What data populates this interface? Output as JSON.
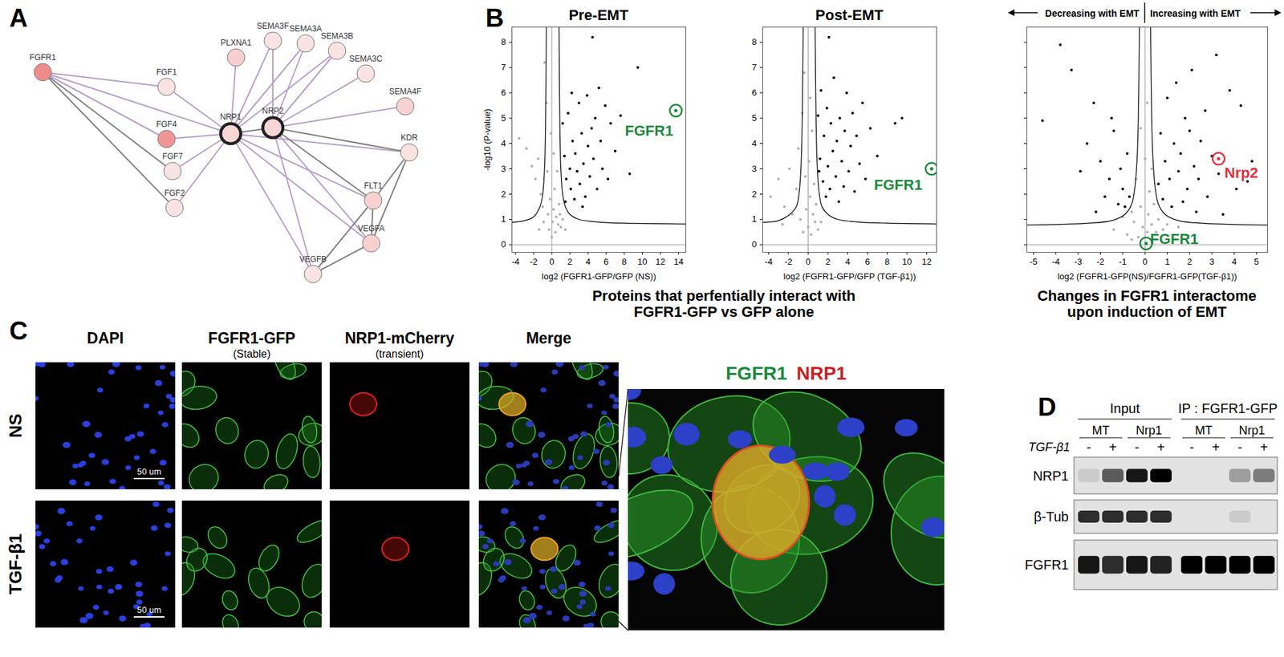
{
  "panel_labels": [
    "A",
    "B",
    "C",
    "D"
  ],
  "network": {
    "nodes": [
      {
        "label": "FGFR1",
        "color": "#ee8c8c",
        "emphasis": false
      },
      {
        "label": "FGF1",
        "color": "#fbe3e3",
        "emphasis": false
      },
      {
        "label": "FGF4",
        "color": "#ee9696",
        "emphasis": false
      },
      {
        "label": "FGF7",
        "color": "#fbe3e3",
        "emphasis": false
      },
      {
        "label": "FGF2",
        "color": "#fbe3e3",
        "emphasis": false
      },
      {
        "label": "NRP1",
        "color": "#f9d6d6",
        "emphasis": true
      },
      {
        "label": "NRP2",
        "color": "#f9d6d6",
        "emphasis": true
      },
      {
        "label": "PLXNA1",
        "color": "#f8cfcf",
        "emphasis": false
      },
      {
        "label": "SEMA3F",
        "color": "#fbe3e3",
        "emphasis": false
      },
      {
        "label": "SEMA3A",
        "color": "#fbe3e3",
        "emphasis": false
      },
      {
        "label": "SEMA3B",
        "color": "#fbe3e3",
        "emphasis": false
      },
      {
        "label": "SEMA3C",
        "color": "#fbe3e3",
        "emphasis": false
      },
      {
        "label": "SEMA4F",
        "color": "#f8d2d2",
        "emphasis": false
      },
      {
        "label": "KDR",
        "color": "#fbe3e3",
        "emphasis": false
      },
      {
        "label": "FLT1",
        "color": "#f8d2d2",
        "emphasis": false
      },
      {
        "label": "VEGFA",
        "color": "#f8d0d0",
        "emphasis": false
      },
      {
        "label": "VEGFB",
        "color": "#fbe3e3",
        "emphasis": false
      }
    ],
    "edges": [
      {
        "source": 0,
        "target": 1,
        "color": "#b79fc8"
      },
      {
        "source": 0,
        "target": 2,
        "color": "#b79fc8"
      },
      {
        "source": 0,
        "target": 3,
        "color": "#808080"
      },
      {
        "source": 0,
        "target": 4,
        "color": "#808080"
      },
      {
        "source": 0,
        "target": 5,
        "color": "#b79fc8"
      },
      {
        "source": 1,
        "target": 5,
        "color": "#b79fc8"
      },
      {
        "source": 2,
        "target": 5,
        "color": "#b79fc8"
      },
      {
        "source": 3,
        "target": 5,
        "color": "#b79fc8"
      },
      {
        "source": 4,
        "target": 5,
        "color": "#b79fc8"
      },
      {
        "source": 5,
        "target": 6,
        "color": "#808080"
      },
      {
        "source": 5,
        "target": 7,
        "color": "#b79fc8"
      },
      {
        "source": 5,
        "target": 8,
        "color": "#b79fc8"
      },
      {
        "source": 5,
        "target": 9,
        "color": "#b79fc8"
      },
      {
        "source": 5,
        "target": 10,
        "color": "#b79fc8"
      },
      {
        "source": 5,
        "target": 13,
        "color": "#b79fc8"
      },
      {
        "source": 5,
        "target": 14,
        "color": "#b79fc8"
      },
      {
        "source": 5,
        "target": 15,
        "color": "#b79fc8"
      },
      {
        "source": 5,
        "target": 16,
        "color": "#b79fc8"
      },
      {
        "source": 6,
        "target": 8,
        "color": "#b79fc8"
      },
      {
        "source": 6,
        "target": 9,
        "color": "#b79fc8"
      },
      {
        "source": 6,
        "target": 10,
        "color": "#b79fc8"
      },
      {
        "source": 6,
        "target": 11,
        "color": "#b79fc8"
      },
      {
        "source": 6,
        "target": 12,
        "color": "#b79fc8"
      },
      {
        "source": 6,
        "target": 15,
        "color": "#b79fc8"
      },
      {
        "source": 6,
        "target": 16,
        "color": "#b79fc8"
      },
      {
        "source": 6,
        "target": 14,
        "color": "#808080"
      },
      {
        "source": 6,
        "target": 13,
        "color": "#808080"
      },
      {
        "source": 13,
        "target": 14,
        "color": "#808080"
      },
      {
        "source": 13,
        "target": 15,
        "color": "#808080"
      },
      {
        "source": 14,
        "target": 15,
        "color": "#808080"
      },
      {
        "source": 14,
        "target": 16,
        "color": "#808080"
      },
      {
        "source": 15,
        "target": 16,
        "color": "#808080"
      }
    ]
  },
  "chart_data": [
    {
      "type": "scatter",
      "title": "Pre-EMT",
      "x_label": "log2 (FGFR1-GFP/GFP (NS))",
      "y_label": "-log10 (P-value)",
      "xlim": [
        -4.4,
        14.8
      ],
      "ylim": [
        -0.3,
        8.6
      ],
      "xticks": [
        -4,
        -2,
        0,
        2,
        4,
        6,
        8,
        10,
        12,
        14
      ],
      "yticks": [
        0,
        1,
        2,
        3,
        4,
        5,
        6,
        7,
        8
      ],
      "reference_lines": {
        "x": [
          0
        ],
        "y": [
          0
        ]
      },
      "series": [
        {
          "color": "#b0b0b0",
          "x": [
            -3.6,
            -2.8,
            -2.2,
            -1.8,
            -1.5,
            -1.2,
            -1.0,
            -0.8,
            -0.6,
            -0.5,
            -0.4,
            -0.3,
            -0.2,
            0,
            0.1,
            0.2,
            0.3,
            0.4,
            0.5,
            0.6,
            0.7,
            0.8,
            1.0,
            1.2,
            1.5,
            -0.9,
            -1.4,
            0.2,
            -0.1,
            0.9
          ],
          "y": [
            4.2,
            3.8,
            3.1,
            2.6,
            3.4,
            2.0,
            1.5,
            7.2,
            5.6,
            2.9,
            1.2,
            0.6,
            1.8,
            0.3,
            0.9,
            1.4,
            2.2,
            0.5,
            1.1,
            2.9,
            0.8,
            1.6,
            0.7,
            1.0,
            0.6,
            0.9,
            0.6,
            3.6,
            4.4,
            1.2
          ]
        },
        {
          "color": "#000000",
          "x": [
            1.2,
            1.4,
            1.6,
            1.8,
            2.0,
            2.1,
            2.3,
            2.5,
            2.6,
            2.8,
            3.0,
            3.1,
            3.3,
            3.5,
            3.7,
            3.9,
            4.0,
            4.2,
            4.4,
            4.6,
            4.8,
            5.0,
            5.2,
            5.4,
            5.6,
            5.9,
            6.2,
            6.5,
            7.0,
            7.6,
            8.6,
            9.5,
            1.5,
            2.2,
            3.4,
            4.5
          ],
          "y": [
            4.8,
            3.5,
            2.6,
            5.2,
            3.0,
            2.2,
            4.1,
            1.8,
            3.6,
            2.9,
            5.6,
            2.4,
            4.4,
            3.2,
            1.9,
            5.9,
            3.9,
            2.7,
            4.6,
            3.4,
            5.0,
            2.2,
            6.2,
            4.1,
            3.0,
            5.5,
            2.6,
            4.8,
            3.7,
            5.1,
            2.8,
            7.0,
            1.7,
            6.0,
            1.5,
            8.2
          ]
        }
      ],
      "threshold": [
        {
          "color": "#000000",
          "x": [
            0.8,
            0.9,
            1.0,
            1.2,
            1.5,
            2,
            3,
            5,
            8,
            14.8
          ],
          "y": [
            8.6,
            4.5,
            3.0,
            2.0,
            1.5,
            1.2,
            1.0,
            0.9,
            0.85,
            0.82
          ]
        },
        {
          "color": "#000000",
          "x": [
            -0.6,
            -0.7,
            -0.8,
            -1,
            -1.3,
            -2,
            -3,
            -4.4
          ],
          "y": [
            8.6,
            4.5,
            3.0,
            2.0,
            1.5,
            1.1,
            0.95,
            0.88
          ]
        }
      ],
      "highlights": [
        {
          "label": "FGFR1",
          "x": 13.7,
          "y": 5.3,
          "color": "#1a8a3a"
        }
      ]
    },
    {
      "type": "scatter",
      "title": "Post-EMT",
      "x_label": "log2 (FGFR1-GFP/GFP (TGF-β1))",
      "xlim": [
        -4.6,
        13
      ],
      "ylim": [
        -0.3,
        8.6
      ],
      "xticks": [
        -4,
        -2,
        0,
        2,
        4,
        6,
        8,
        10,
        12
      ],
      "yticks": [
        0,
        1,
        2,
        3,
        4,
        5,
        6,
        7,
        8
      ],
      "reference_lines": {
        "x": [
          0
        ],
        "y": [
          0
        ]
      },
      "series": [
        {
          "color": "#b0b0b0",
          "x": [
            -3.8,
            -3.0,
            -2.4,
            -1.9,
            -1.6,
            -1.2,
            -1.0,
            -0.8,
            -0.6,
            -0.5,
            -0.3,
            -0.2,
            0,
            0.1,
            0.2,
            0.3,
            0.4,
            0.5,
            0.6,
            0.7,
            0.8,
            1.0,
            1.3,
            -0.4,
            0.2,
            -2.6
          ],
          "y": [
            1.9,
            2.6,
            1.5,
            3.0,
            1.2,
            2.2,
            3.8,
            1.0,
            5.2,
            0.5,
            2.7,
            1.4,
            0.7,
            3.3,
            1.9,
            0.4,
            4.5,
            1.2,
            2.4,
            0.9,
            1.6,
            0.6,
            0.9,
            6.8,
            5.8,
            0.8
          ]
        },
        {
          "color": "#000000",
          "x": [
            1.0,
            1.2,
            1.3,
            1.5,
            1.6,
            1.8,
            1.9,
            2.0,
            2.2,
            2.3,
            2.5,
            2.6,
            2.8,
            2.9,
            3.1,
            3.2,
            3.4,
            3.6,
            3.7,
            3.9,
            4.1,
            4.3,
            4.5,
            4.7,
            4.9,
            5.2,
            5.5,
            5.8,
            6.3,
            7.0,
            8.8,
            9.5,
            2.1,
            1.1
          ],
          "y": [
            5.1,
            3.4,
            6.1,
            2.5,
            4.3,
            1.9,
            5.4,
            3.1,
            2.2,
            4.8,
            3.7,
            6.6,
            2.7,
            4.1,
            1.7,
            5.0,
            3.3,
            2.3,
            4.5,
            6.0,
            2.9,
            3.9,
            5.2,
            2.1,
            4.3,
            3.2,
            5.6,
            2.6,
            4.6,
            3.5,
            4.8,
            5.0,
            8.2,
            2.9
          ]
        }
      ],
      "threshold": [
        {
          "color": "#000000",
          "x": [
            0.7,
            0.8,
            0.9,
            1.1,
            1.4,
            2,
            3,
            5,
            8,
            13
          ],
          "y": [
            8.6,
            5,
            3.3,
            2.1,
            1.5,
            1.2,
            1.0,
            0.9,
            0.85,
            0.82
          ]
        },
        {
          "color": "#000000",
          "x": [
            -0.5,
            -0.6,
            -0.7,
            -0.9,
            -1.2,
            -2,
            -3,
            -4.6
          ],
          "y": [
            8.6,
            5,
            3.3,
            2.1,
            1.5,
            1.15,
            0.95,
            0.88
          ]
        }
      ],
      "highlights": [
        {
          "label": "FGFR1",
          "x": 12.5,
          "y": 3.0,
          "color": "#1a8a3a"
        }
      ]
    },
    {
      "type": "scatter",
      "x_label": "log2 (FGFR1-GFP(NS)/FGFR1-GFP(TGF-β1))",
      "xlim": [
        -5.3,
        5.5
      ],
      "ylim": [
        -0.3,
        8.6
      ],
      "xticks": [
        -5,
        -4,
        -3,
        -2,
        -1,
        0,
        1,
        2,
        3,
        4,
        5
      ],
      "yticks": [
        0,
        1,
        2,
        3,
        4,
        5,
        6,
        7,
        8
      ],
      "tick_labels": "x",
      "reference_lines": {
        "x": [
          0
        ],
        "y": [
          0
        ]
      },
      "series": [
        {
          "color": "#b0b0b0",
          "x": [
            -1.4,
            -1.0,
            -0.8,
            -0.6,
            -0.5,
            -0.4,
            -0.3,
            -0.2,
            -0.1,
            0,
            0.1,
            0.15,
            0.2,
            0.3,
            0.4,
            0.5,
            0.6,
            0.8,
            1.0,
            -0.2,
            0.1,
            -0.6,
            0.3,
            1.5
          ],
          "y": [
            0.6,
            1.1,
            0.4,
            1.3,
            0.9,
            2.6,
            0.3,
            1.5,
            0.7,
            3.4,
            0.5,
            1.2,
            2.1,
            0.8,
            1.6,
            0.5,
            1.0,
            0.6,
            0.8,
            4.6,
            5.6,
            0.2,
            3.0,
            0.7
          ]
        },
        {
          "color": "#000000",
          "x": [
            -4.6,
            -3.8,
            -3.3,
            -2.9,
            -2.6,
            -2.3,
            -2.0,
            -1.8,
            -1.6,
            -1.4,
            -1.2,
            -1.1,
            -1.0,
            -0.9,
            -0.8,
            -0.7,
            -1.5,
            -2.2,
            0.6,
            0.7,
            0.8,
            0.9,
            1.0,
            1.1,
            1.2,
            1.3,
            1.4,
            1.5,
            1.6,
            1.7,
            1.8,
            1.9,
            2.0,
            2.1,
            2.2,
            2.3,
            2.4,
            2.5,
            2.7,
            2.8,
            3.0,
            3.3,
            3.5,
            3.8,
            4.1,
            4.3,
            4.6,
            4.8,
            3.2
          ],
          "y": [
            4.9,
            7.9,
            6.9,
            2.9,
            4.0,
            5.6,
            3.3,
            1.9,
            2.6,
            4.5,
            1.6,
            3.0,
            2.2,
            1.5,
            3.6,
            1.9,
            5.0,
            1.3,
            2.4,
            4.4,
            1.8,
            3.3,
            5.8,
            2.6,
            1.5,
            4.0,
            6.4,
            2.9,
            3.6,
            1.7,
            5.0,
            2.2,
            4.5,
            6.9,
            3.1,
            1.3,
            2.6,
            4.1,
            5.3,
            1.9,
            3.5,
            2.8,
            1.2,
            6.1,
            2.2,
            5.5,
            2.5,
            3.3,
            7.5
          ]
        }
      ],
      "threshold": [
        {
          "color": "#000000",
          "x": [
            0.25,
            0.3,
            0.35,
            0.45,
            0.6,
            0.9,
            1.5,
            2.5,
            4,
            5.5
          ],
          "y": [
            8.6,
            5,
            3.5,
            2.3,
            1.6,
            1.2,
            0.95,
            0.85,
            0.8,
            0.78
          ]
        },
        {
          "color": "#000000",
          "x": [
            -0.25,
            -0.3,
            -0.35,
            -0.45,
            -0.6,
            -0.9,
            -1.5,
            -2.5,
            -4,
            -5.3
          ],
          "y": [
            8.6,
            5,
            3.5,
            2.3,
            1.6,
            1.2,
            0.95,
            0.85,
            0.8,
            0.78
          ]
        }
      ],
      "highlights": [
        {
          "label": "FGFR1",
          "x": 0.05,
          "y": 0.05,
          "color": "#1a8a3a"
        },
        {
          "label": "Nrp2",
          "x": 3.3,
          "y": 3.4,
          "color": "#e0303a"
        }
      ]
    }
  ],
  "panel_b_arrows": {
    "left": "Decreasing with EMT",
    "right": "Increasing with EMT"
  },
  "panel_b_captions": [
    [
      "Proteins that perfentially interact with",
      "FGFR1-GFP vs GFP alone"
    ],
    [
      "Changes in FGFR1 interactome",
      "upon induction of EMT"
    ]
  ],
  "panel_c": {
    "columns": [
      {
        "title": "DAPI"
      },
      {
        "title": "FGFR1-GFP",
        "subtitle": "(Stable)"
      },
      {
        "title": "NRP1-mCherry",
        "subtitle": "(transient)"
      },
      {
        "title": "Merge"
      }
    ],
    "rows": [
      "NS",
      "TGF-β1"
    ],
    "scale_bar": "50 um",
    "zoom_labels": [
      {
        "text": "FGFR1",
        "color": "#1a8a3a"
      },
      {
        "text": "NRP1",
        "color": "#cc1f1f"
      }
    ]
  },
  "panel_d": {
    "group_labels": [
      "Input",
      "IP : FGFR1-GFP"
    ],
    "lane_groups": [
      "MT",
      "Nrp1",
      "MT",
      "Nrp1"
    ],
    "treatment_label": "TGF-β1",
    "treatment": [
      "-",
      "+",
      "-",
      "+",
      "-",
      "+",
      "-",
      "+"
    ],
    "bands": [
      {
        "label": "NRP1",
        "intensity": [
          0.1,
          0.6,
          0.9,
          1.0,
          0,
          0,
          0.3,
          0.45
        ]
      },
      {
        "label": "β-Tub",
        "intensity": [
          0.8,
          0.8,
          0.8,
          0.8,
          0,
          0,
          0.1,
          0
        ]
      },
      {
        "label": "FGFR1",
        "intensity": [
          0.9,
          0.8,
          0.9,
          0.85,
          1,
          1,
          1,
          1
        ]
      }
    ]
  }
}
